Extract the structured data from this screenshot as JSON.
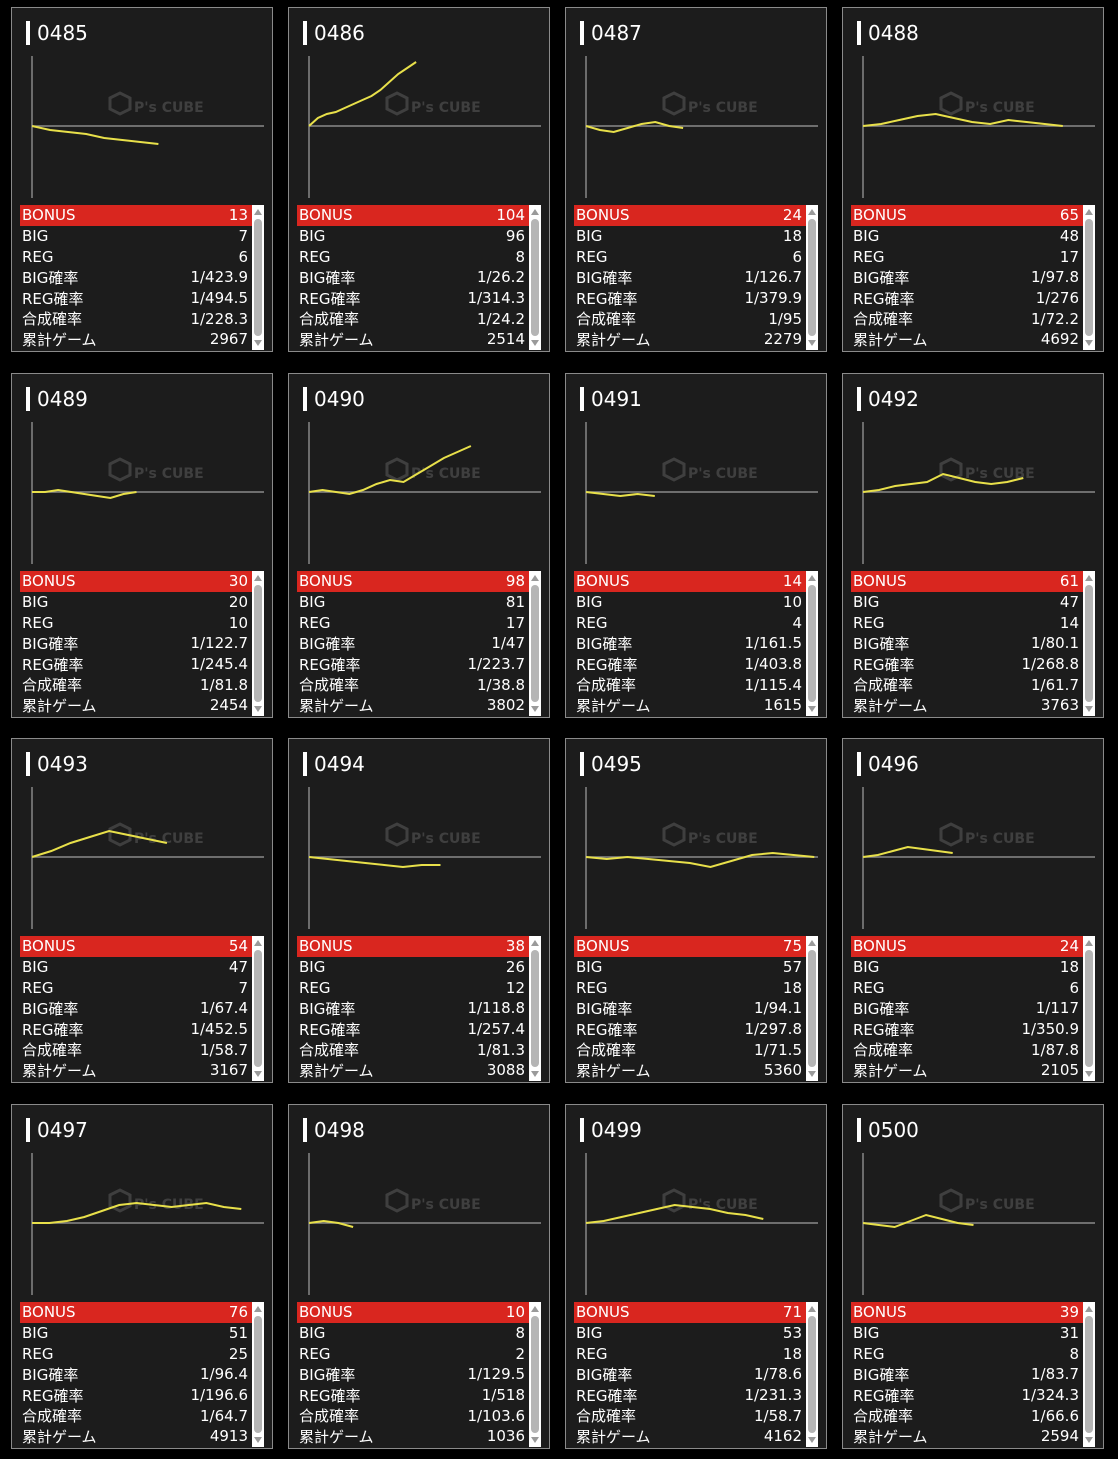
{
  "colors": {
    "bonus_bar": "#d9261f",
    "graph_line": "#e8e04a",
    "baseline": "#8a8a8a",
    "card_bg": "#1c1c1c"
  },
  "watermark": {
    "text": "P's CUBE",
    "icon": "cube-logo-icon"
  },
  "labels": {
    "bonus": "BONUS",
    "big": "BIG",
    "reg": "REG",
    "big_rate": "BIG確率",
    "reg_rate": "REG確率",
    "combined_rate": "合成確率",
    "total_games": "累計ゲーム"
  },
  "cards": [
    {
      "id": "0485",
      "bonus": "13",
      "big": "7",
      "reg": "6",
      "big_rate": "1/423.9",
      "reg_rate": "1/494.5",
      "combined_rate": "1/228.3",
      "total_games": "2967",
      "trend": [
        0,
        -4,
        -6,
        -8,
        -12,
        -14,
        -16,
        -18
      ]
    },
    {
      "id": "0486",
      "bonus": "104",
      "big": "96",
      "reg": "8",
      "big_rate": "1/26.2",
      "reg_rate": "1/314.3",
      "combined_rate": "1/24.2",
      "total_games": "2514",
      "trend": [
        0,
        8,
        12,
        14,
        18,
        22,
        26,
        30,
        36,
        44,
        52,
        58,
        64
      ]
    },
    {
      "id": "0487",
      "bonus": "24",
      "big": "18",
      "reg": "6",
      "big_rate": "1/126.7",
      "reg_rate": "1/379.9",
      "combined_rate": "1/95",
      "total_games": "2279",
      "trend": [
        0,
        -4,
        -6,
        -2,
        2,
        4,
        0,
        -2
      ]
    },
    {
      "id": "0488",
      "bonus": "65",
      "big": "48",
      "reg": "17",
      "big_rate": "1/97.8",
      "reg_rate": "1/276",
      "combined_rate": "1/72.2",
      "total_games": "4692",
      "trend": [
        0,
        2,
        6,
        10,
        12,
        8,
        4,
        2,
        6,
        4,
        2,
        0
      ]
    },
    {
      "id": "0489",
      "bonus": "30",
      "big": "20",
      "reg": "10",
      "big_rate": "1/122.7",
      "reg_rate": "1/245.4",
      "combined_rate": "1/81.8",
      "total_games": "2454",
      "trend": [
        0,
        0,
        2,
        0,
        -2,
        -4,
        -6,
        -2,
        0
      ]
    },
    {
      "id": "0490",
      "bonus": "98",
      "big": "81",
      "reg": "17",
      "big_rate": "1/47",
      "reg_rate": "1/223.7",
      "combined_rate": "1/38.8",
      "total_games": "3802",
      "trend": [
        0,
        2,
        0,
        -2,
        2,
        8,
        12,
        10,
        18,
        26,
        34,
        40,
        46
      ]
    },
    {
      "id": "0491",
      "bonus": "14",
      "big": "10",
      "reg": "4",
      "big_rate": "1/161.5",
      "reg_rate": "1/403.8",
      "combined_rate": "1/115.4",
      "total_games": "1615",
      "trend": [
        0,
        -2,
        -4,
        -2,
        -4
      ]
    },
    {
      "id": "0492",
      "bonus": "61",
      "big": "47",
      "reg": "14",
      "big_rate": "1/80.1",
      "reg_rate": "1/268.8",
      "combined_rate": "1/61.7",
      "total_games": "3763",
      "trend": [
        0,
        2,
        6,
        8,
        10,
        18,
        14,
        10,
        8,
        10,
        14
      ]
    },
    {
      "id": "0493",
      "bonus": "54",
      "big": "47",
      "reg": "7",
      "big_rate": "1/67.4",
      "reg_rate": "1/452.5",
      "combined_rate": "1/58.7",
      "total_games": "3167",
      "trend": [
        0,
        6,
        14,
        20,
        26,
        22,
        18,
        14
      ]
    },
    {
      "id": "0494",
      "bonus": "38",
      "big": "26",
      "reg": "12",
      "big_rate": "1/118.8",
      "reg_rate": "1/257.4",
      "combined_rate": "1/81.3",
      "total_games": "3088",
      "trend": [
        0,
        -2,
        -4,
        -6,
        -8,
        -10,
        -8,
        -8
      ]
    },
    {
      "id": "0495",
      "bonus": "75",
      "big": "57",
      "reg": "18",
      "big_rate": "1/94.1",
      "reg_rate": "1/297.8",
      "combined_rate": "1/71.5",
      "total_games": "5360",
      "trend": [
        0,
        -2,
        0,
        -2,
        -4,
        -6,
        -10,
        -4,
        2,
        4,
        2,
        0
      ]
    },
    {
      "id": "0496",
      "bonus": "24",
      "big": "18",
      "reg": "6",
      "big_rate": "1/117",
      "reg_rate": "1/350.9",
      "combined_rate": "1/87.8",
      "total_games": "2105",
      "trend": [
        0,
        2,
        6,
        10,
        8,
        6,
        4
      ]
    },
    {
      "id": "0497",
      "bonus": "76",
      "big": "51",
      "reg": "25",
      "big_rate": "1/96.4",
      "reg_rate": "1/196.6",
      "combined_rate": "1/64.7",
      "total_games": "4913",
      "trend": [
        0,
        0,
        2,
        6,
        12,
        18,
        20,
        18,
        16,
        18,
        20,
        16,
        14
      ]
    },
    {
      "id": "0498",
      "bonus": "10",
      "big": "8",
      "reg": "2",
      "big_rate": "1/129.5",
      "reg_rate": "1/518",
      "combined_rate": "1/103.6",
      "total_games": "1036",
      "trend": [
        0,
        2,
        0,
        -4
      ]
    },
    {
      "id": "0499",
      "bonus": "71",
      "big": "53",
      "reg": "18",
      "big_rate": "1/78.6",
      "reg_rate": "1/231.3",
      "combined_rate": "1/58.7",
      "total_games": "4162",
      "trend": [
        0,
        2,
        6,
        10,
        14,
        18,
        16,
        14,
        10,
        8,
        4
      ]
    },
    {
      "id": "0500",
      "bonus": "39",
      "big": "31",
      "reg": "8",
      "big_rate": "1/83.7",
      "reg_rate": "1/324.3",
      "combined_rate": "1/66.6",
      "total_games": "2594",
      "trend": [
        0,
        -2,
        -4,
        2,
        8,
        4,
        0,
        -2
      ]
    }
  ]
}
